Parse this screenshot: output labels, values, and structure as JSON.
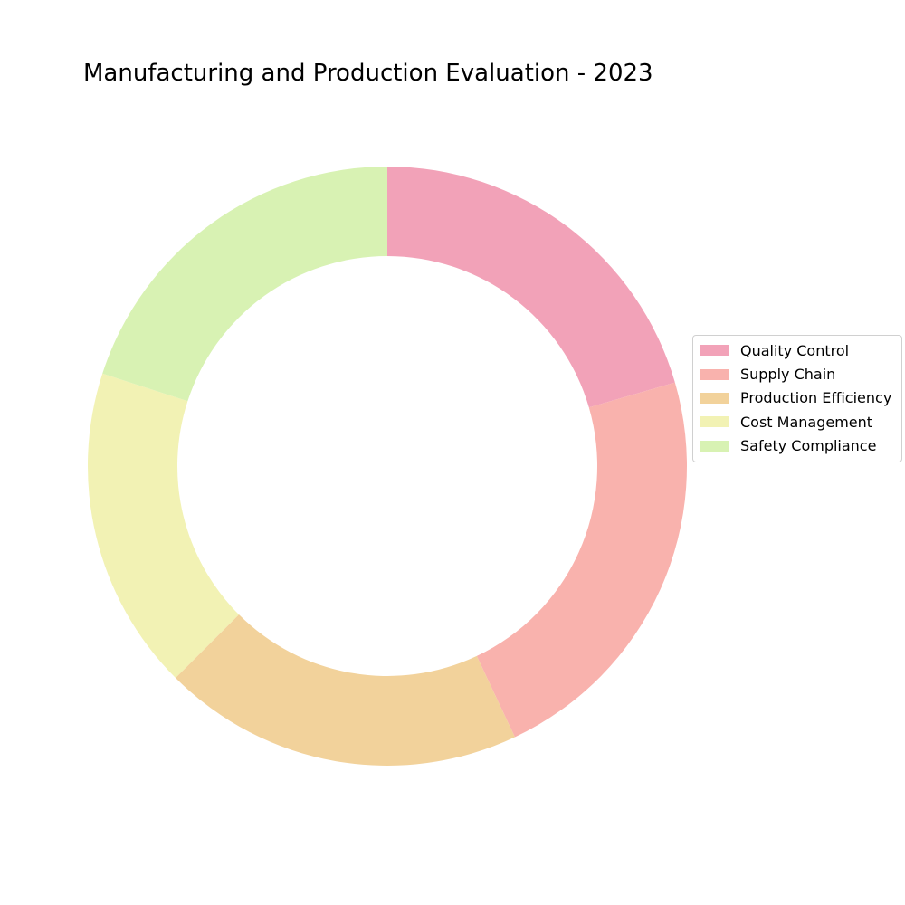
{
  "chart_data": {
    "type": "pie",
    "title": "Manufacturing and Production Evaluation - 2023",
    "style": "donut",
    "legend_position": "right",
    "categories": [
      "Quality Control",
      "Supply Chain",
      "Production Efficiency",
      "Cost Management",
      "Safety Compliance"
    ],
    "values": [
      20.5,
      22.5,
      19.5,
      17.5,
      20
    ],
    "colors": [
      "#f2a2b8",
      "#f9b2ad",
      "#f2d29b",
      "#f2f2b4",
      "#d8f2b3"
    ]
  }
}
